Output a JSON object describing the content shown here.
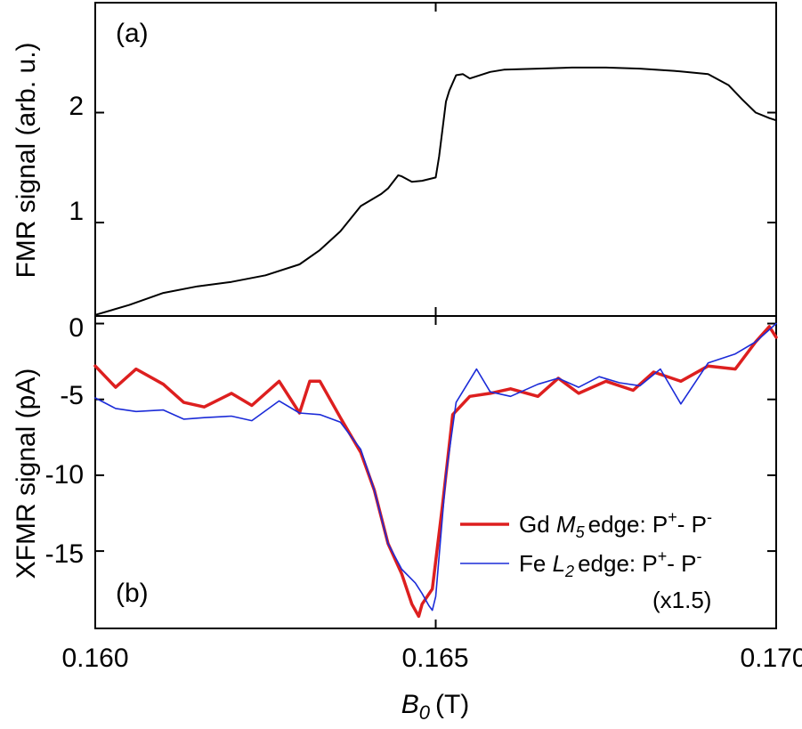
{
  "chart_data": [
    {
      "type": "line",
      "panel": "(a)",
      "ylabel": "FMR signal (arb. u.)",
      "xlim": [
        0.16,
        0.17
      ],
      "ylim": [
        0.15,
        3.0
      ],
      "yticks": [
        1,
        2
      ],
      "ytick_labels": [
        "1",
        "2"
      ],
      "series": [
        {
          "name": "FMR",
          "color": "#000000",
          "x": [
            0.16,
            0.1605,
            0.161,
            0.1615,
            0.162,
            0.1625,
            0.163,
            0.1633,
            0.1636,
            0.1639,
            0.1642,
            0.1643,
            0.16445,
            0.1645,
            0.16465,
            0.1648,
            0.165,
            0.16505,
            0.16515,
            0.1652,
            0.1653,
            0.1654,
            0.1655,
            0.1658,
            0.166,
            0.1665,
            0.167,
            0.1675,
            0.168,
            0.1685,
            0.169,
            0.1693,
            0.1695,
            0.1697,
            0.1699,
            0.17
          ],
          "y": [
            0.16,
            0.25,
            0.36,
            0.42,
            0.46,
            0.52,
            0.62,
            0.75,
            0.92,
            1.15,
            1.26,
            1.31,
            1.43,
            1.42,
            1.37,
            1.38,
            1.41,
            1.6,
            2.1,
            2.2,
            2.34,
            2.35,
            2.31,
            2.37,
            2.39,
            2.4,
            2.41,
            2.41,
            2.4,
            2.38,
            2.35,
            2.25,
            2.12,
            2.0,
            1.95,
            1.93
          ]
        }
      ]
    },
    {
      "type": "line",
      "panel": "(b)",
      "xlabel_main": "B",
      "xlabel_sub": "0",
      "xlabel_unit": "(T)",
      "ylabel": "XFMR signal (pA)",
      "xlim": [
        0.16,
        0.17
      ],
      "ylim": [
        -20.1,
        0.5
      ],
      "xticks": [
        0.16,
        0.165,
        0.17
      ],
      "xtick_labels": [
        "0.160",
        "0.165",
        "0.170"
      ],
      "yticks": [
        0,
        -5,
        -10,
        -15
      ],
      "ytick_labels": [
        "0",
        "-5",
        "-10",
        "-15"
      ],
      "series": [
        {
          "name": "Gd M5 edge: P+- P-",
          "color": "#dd1f1f",
          "x": [
            0.16,
            0.1603,
            0.1606,
            0.161,
            0.1613,
            0.1616,
            0.162,
            0.1623,
            0.1627,
            0.163,
            0.16315,
            0.1633,
            0.1636,
            0.1639,
            0.1641,
            0.1643,
            0.1645,
            0.16465,
            0.16475,
            0.1648,
            0.16495,
            0.1651,
            0.16525,
            0.1655,
            0.1658,
            0.1661,
            0.1665,
            0.1668,
            0.1671,
            0.1675,
            0.1679,
            0.1682,
            0.1686,
            0.169,
            0.1694,
            0.1697,
            0.1699,
            0.17
          ],
          "y": [
            -2.8,
            -4.2,
            -3.0,
            -4.0,
            -5.2,
            -5.5,
            -4.6,
            -5.4,
            -3.8,
            -5.9,
            -3.8,
            -3.8,
            -6.2,
            -8.5,
            -11.0,
            -14.5,
            -16.5,
            -18.5,
            -19.3,
            -18.5,
            -17.5,
            -12.0,
            -6.0,
            -4.8,
            -4.6,
            -4.3,
            -4.8,
            -3.6,
            -4.6,
            -3.8,
            -4.4,
            -3.2,
            -3.8,
            -2.8,
            -3.0,
            -1.2,
            -0.2,
            -0.9
          ]
        },
        {
          "name": "Fe L2 edge: P+- P-",
          "color": "#1b2bd8",
          "x": [
            0.16,
            0.1603,
            0.1606,
            0.161,
            0.1613,
            0.1616,
            0.162,
            0.1623,
            0.1627,
            0.163,
            0.1633,
            0.1636,
            0.1639,
            0.1641,
            0.1643,
            0.1645,
            0.1647,
            0.1648,
            0.1649,
            0.16495,
            0.165,
            0.16515,
            0.1653,
            0.1656,
            0.1658,
            0.1661,
            0.1665,
            0.1668,
            0.1671,
            0.1674,
            0.1677,
            0.168,
            0.1683,
            0.1686,
            0.169,
            0.1694,
            0.1697,
            0.17
          ],
          "y": [
            -4.9,
            -5.6,
            -5.8,
            -5.7,
            -6.3,
            -6.2,
            -6.1,
            -6.4,
            -5.1,
            -5.9,
            -6.0,
            -6.5,
            -8.3,
            -11.0,
            -14.5,
            -16.2,
            -17.1,
            -17.8,
            -18.6,
            -18.9,
            -18.0,
            -10.0,
            -5.2,
            -3.0,
            -4.5,
            -4.8,
            -4.0,
            -3.6,
            -4.2,
            -3.5,
            -3.9,
            -4.1,
            -3.0,
            -5.3,
            -2.6,
            -2.0,
            -1.2,
            0.0
          ]
        }
      ],
      "legend": {
        "placement": "lower-right",
        "gd_prefix": "Gd ",
        "gd_edge": "M",
        "gd_edge_sub": "5",
        "gd_suffix_a": "edge: P",
        "gd_sup_a": "+",
        "gd_suffix_b": "- P",
        "gd_sup_b": "-",
        "fe_prefix": "Fe ",
        "fe_edge": "L",
        "fe_edge_sub": "2",
        "fe_suffix_a": "edge: P",
        "fe_sup_a": "+",
        "fe_suffix_b": "- P",
        "fe_sup_b": "-",
        "scale_note": "(x1.5)"
      }
    }
  ]
}
